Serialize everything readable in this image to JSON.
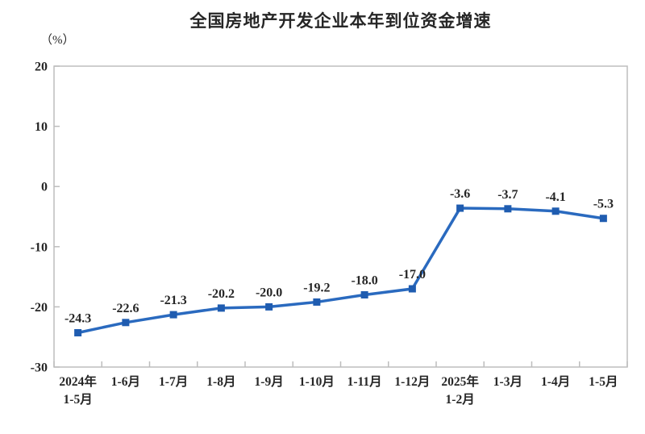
{
  "title": "全国房地产开发企业本年到位资金增速",
  "unit_label": "（%）",
  "colors": {
    "line": "#2a6abf",
    "marker": "#1f5cb0",
    "axis": "#bdbdbd",
    "text": "#262626"
  },
  "chart_data": {
    "type": "line",
    "title": "全国房地产开发企业本年到位资金增速",
    "ylabel": "（%）",
    "xlabel": "",
    "categories": [
      "2024年\n1-5月",
      "1-6月",
      "1-7月",
      "1-8月",
      "1-9月",
      "1-10月",
      "1-11月",
      "1-12月",
      "2025年\n1-2月",
      "1-3月",
      "1-4月",
      "1-5月"
    ],
    "values": [
      -24.3,
      -22.6,
      -21.3,
      -20.2,
      -20.0,
      -19.2,
      -18.0,
      -17.0,
      -3.6,
      -3.7,
      -4.1,
      -5.3
    ],
    "data_labels": [
      "-24.3",
      "-22.6",
      "-21.3",
      "-20.2",
      "-20.0",
      "-19.2",
      "-18.0",
      "-17.0",
      "-3.6",
      "-3.7",
      "-4.1",
      "-5.3"
    ],
    "ylim": [
      -30,
      20
    ],
    "yticks": [
      20,
      10,
      0,
      -10,
      -20,
      -30
    ],
    "grid": false,
    "legend": "none",
    "marker": "square"
  }
}
